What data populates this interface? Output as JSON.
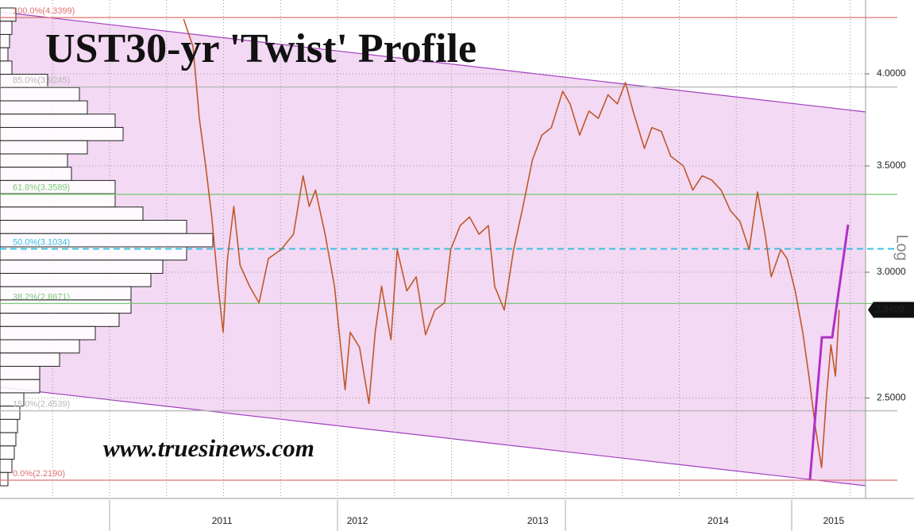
{
  "chart_data": {
    "type": "line",
    "title": "UST30-yr 'Twist' Profile",
    "watermark": "www.truesinews.com",
    "y_axis_label": "Log",
    "log_scale": true,
    "grid": true,
    "x": [
      2011.537,
      2011.589,
      2011.624,
      2011.659,
      2011.693,
      2011.728,
      2011.756,
      2011.78,
      2011.815,
      2011.85,
      2011.902,
      2011.955,
      2012.007,
      2012.077,
      2012.146,
      2012.199,
      2012.233,
      2012.268,
      2012.321,
      2012.373,
      2012.408,
      2012.432,
      2012.46,
      2012.512,
      2012.564,
      2012.599,
      2012.634,
      2012.686,
      2012.721,
      2012.774,
      2012.826,
      2012.878,
      2012.93,
      2012.983,
      2013.017,
      2013.07,
      2013.122,
      2013.174,
      2013.226,
      2013.261,
      2013.314,
      2013.366,
      2013.418,
      2013.47,
      2013.523,
      2013.575,
      2013.638,
      2013.679,
      2013.732,
      2013.784,
      2013.836,
      2013.889,
      2013.941,
      2013.986,
      2014.028,
      2014.091,
      2014.132,
      2014.185,
      2014.237,
      2014.307,
      2014.359,
      2014.411,
      2014.463,
      2014.516,
      2014.568,
      2014.62,
      2014.672,
      2014.718,
      2014.76,
      2014.794,
      2014.847,
      2014.882,
      2014.927,
      2014.969,
      2015.003,
      2015.038,
      2015.073,
      2015.101,
      2015.125,
      2015.15,
      2015.171
    ],
    "series": [
      {
        "color": "#c0582a",
        "values": [
          4.33,
          4.16,
          3.75,
          3.5,
          3.25,
          2.94,
          2.75,
          3.06,
          3.3,
          3.03,
          2.94,
          2.87,
          3.06,
          3.1,
          3.17,
          3.45,
          3.3,
          3.38,
          3.17,
          2.94,
          2.69,
          2.53,
          2.75,
          2.69,
          2.48,
          2.75,
          2.94,
          2.72,
          3.1,
          2.92,
          2.98,
          2.74,
          2.84,
          2.87,
          3.1,
          3.21,
          3.25,
          3.17,
          3.21,
          2.94,
          2.84,
          3.1,
          3.3,
          3.53,
          3.66,
          3.7,
          3.9,
          3.83,
          3.66,
          3.79,
          3.75,
          3.88,
          3.83,
          3.95,
          3.79,
          3.59,
          3.7,
          3.68,
          3.55,
          3.5,
          3.38,
          3.45,
          3.43,
          3.38,
          3.28,
          3.23,
          3.1,
          3.37,
          3.17,
          2.98,
          3.1,
          3.06,
          2.92,
          2.75,
          2.58,
          2.4,
          2.26,
          2.51,
          2.7,
          2.58,
          2.8409
        ]
      }
    ],
    "last_value": 2.8409,
    "xlim": [
      2010.519,
      2015.317
    ],
    "xticks": [
      {
        "value": 2011.75,
        "label": "2011"
      },
      {
        "value": 2012.5,
        "label": "2012"
      },
      {
        "value": 2013.5,
        "label": "2013"
      },
      {
        "value": 2014.5,
        "label": "2014"
      },
      {
        "value": 2015.14,
        "label": "2015"
      }
    ],
    "ylim": [
      2.161,
      4.452
    ],
    "yticks": [
      {
        "value": 4.0,
        "label": "4.0000"
      },
      {
        "value": 3.5,
        "label": "3.5000"
      },
      {
        "value": 3.0,
        "label": "3.0000"
      },
      {
        "value": 2.5,
        "label": "2.5000"
      }
    ],
    "levels": [
      {
        "label": "100.0%(4.3399)",
        "value": 4.3399,
        "color": "#e07070"
      },
      {
        "label": "85.0%(3.9245)",
        "value": 3.9245,
        "color": "#b8b8b8"
      },
      {
        "label": "61.8%(3.3589)",
        "value": 3.3589,
        "color": "#7cc87c"
      },
      {
        "label": "50.0%(3.1034)",
        "value": 3.1034,
        "color": "#3cc0e0"
      },
      {
        "label": "38.2%(2.8671)",
        "value": 2.8671,
        "color": "#7cc87c"
      },
      {
        "label": "15.0%(2.4539)",
        "value": 2.4539,
        "color": "#b8b8b8"
      },
      {
        "label": "0.0%(2.2190)",
        "value": 2.219,
        "color": "#e07070"
      }
    ],
    "volume_profile": [
      20,
      15,
      12,
      10,
      15,
      60,
      100,
      110,
      145,
      155,
      110,
      85,
      90,
      145,
      145,
      180,
      235,
      268,
      235,
      205,
      190,
      165,
      165,
      150,
      120,
      100,
      75,
      50,
      50,
      30,
      25,
      22,
      20,
      18,
      15,
      10
    ]
  }
}
